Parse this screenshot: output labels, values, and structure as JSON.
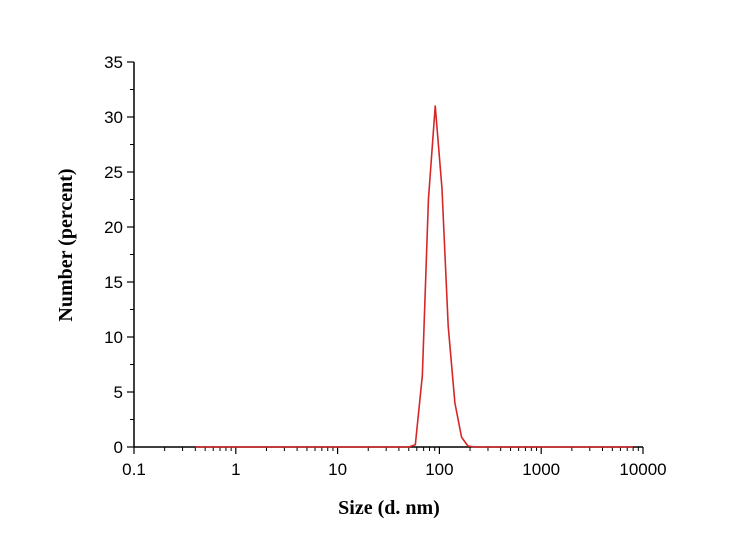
{
  "chart_data": {
    "type": "line",
    "title": "",
    "xlabel": "Size (d. nm)",
    "ylabel": "Number (percent)",
    "xscale": "log",
    "xlim": [
      0.1,
      10000
    ],
    "ylim": [
      0,
      35
    ],
    "xticks": [
      "0.1",
      "1",
      "10",
      "100",
      "1000",
      "10000"
    ],
    "yticks": [
      "0",
      "5",
      "10",
      "15",
      "20",
      "25",
      "30",
      "35"
    ],
    "grid": false,
    "series": [
      {
        "color": "#d62728",
        "x": [
          0.4,
          1,
          10,
          50,
          58,
          68,
          78,
          91,
          106,
          122,
          142,
          165,
          190,
          220,
          300,
          1000,
          5000,
          8000
        ],
        "y": [
          0,
          0,
          0,
          0,
          0.2,
          6.5,
          22.5,
          31,
          23.5,
          11,
          4,
          0.9,
          0.1,
          0,
          0,
          0,
          0,
          0
        ]
      }
    ]
  }
}
